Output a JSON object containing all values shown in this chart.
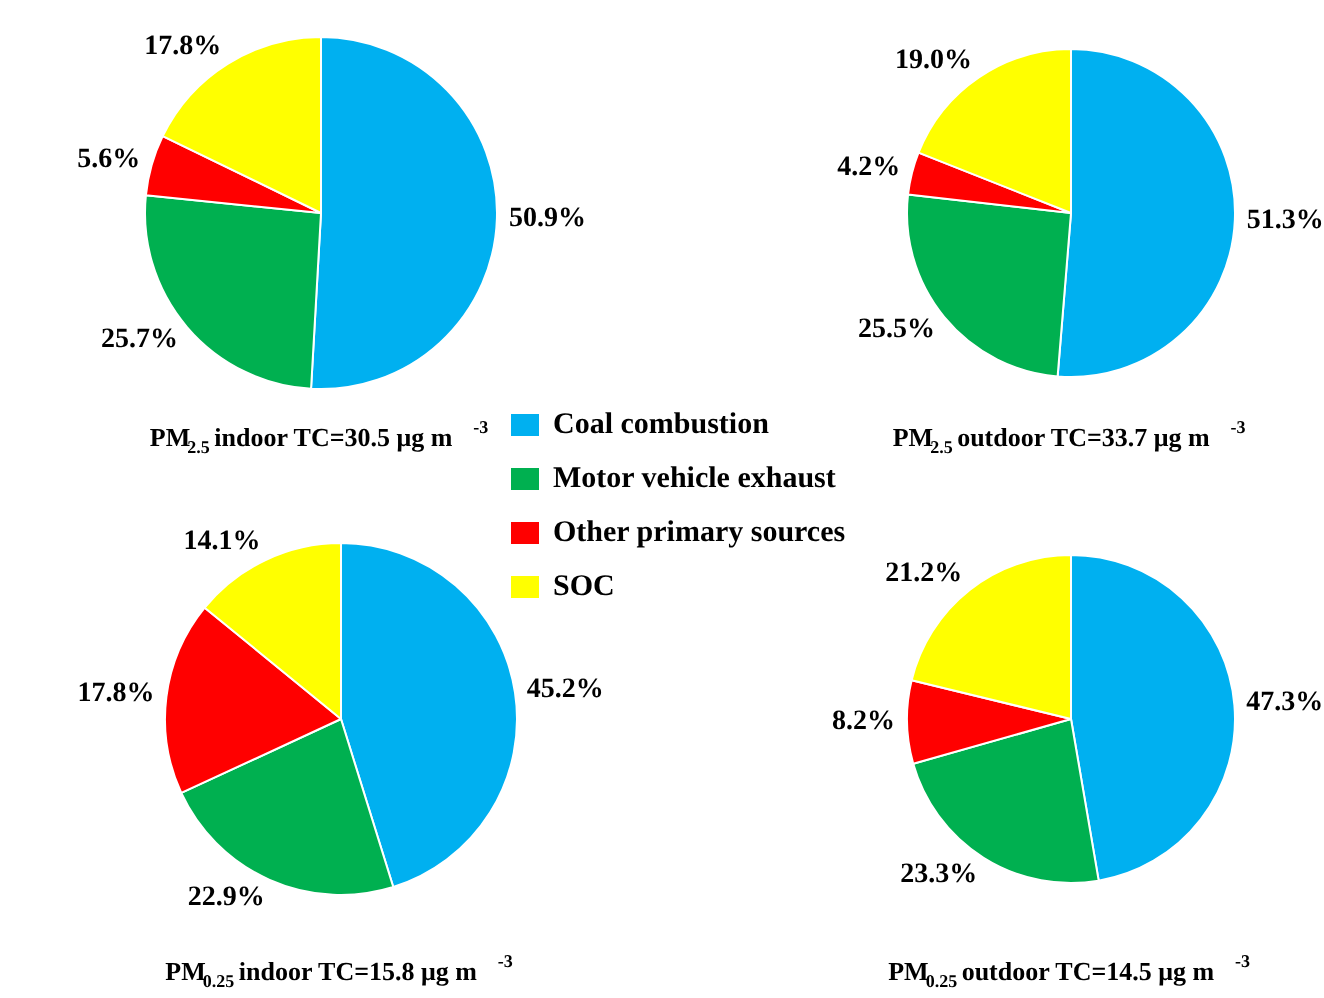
{
  "chart_data": [
    {
      "type": "pie",
      "title": "PM$_{2.5}$ indoor TC=30.5 μg m$^{-3}$",
      "categories": [
        "Coal combustion",
        "Motor vehicle exhaust",
        "Other primary sources",
        "SOC"
      ],
      "values": [
        50.9,
        25.7,
        5.6,
        17.8
      ],
      "value_labels": [
        "50.9%",
        "25.7%",
        "5.6%",
        "17.8%"
      ],
      "colors": [
        "#00b0f0",
        "#00b050",
        "#ff0000",
        "#ffff00"
      ],
      "legend": "bottom right"
    },
    {
      "type": "pie",
      "title": "PM$_{2.5}$ outdoor TC=33.7 μg m$^{-3}$",
      "values": [
        51.3,
        25.5,
        4.2,
        19.0
      ],
      "value_labels": [
        "51.3%",
        "25.5%",
        "4.2%",
        "19.0%"
      ],
      "colors": [
        "#00b0f0",
        "#00b050",
        "#ff0000",
        "#ffff00"
      ]
    },
    {
      "type": "pie",
      "title": "PM$_{0.25}$ indoor TC=15.8 μg m$^{-3}$",
      "values": [
        45.2,
        22.9,
        17.8,
        14.1
      ],
      "value_labels": [
        "45.2%",
        "22.9%",
        "17.8%",
        "14.1%"
      ],
      "colors": [
        "#00b0f0",
        "#00b050",
        "#ff0000",
        "#ffff00"
      ]
    },
    {
      "type": "pie",
      "title": "PM$_{0.25}$ outdoor TC=14.5 μg m$^{-3}$",
      "values": [
        47.3,
        23.3,
        8.2,
        21.2
      ],
      "value_labels": [
        "47.3%",
        "23.3%",
        "8.2%",
        "21.2%"
      ],
      "colors": [
        "#00b0f0",
        "#00b050",
        "#ff0000",
        "#ffff00"
      ]
    }
  ]
}
